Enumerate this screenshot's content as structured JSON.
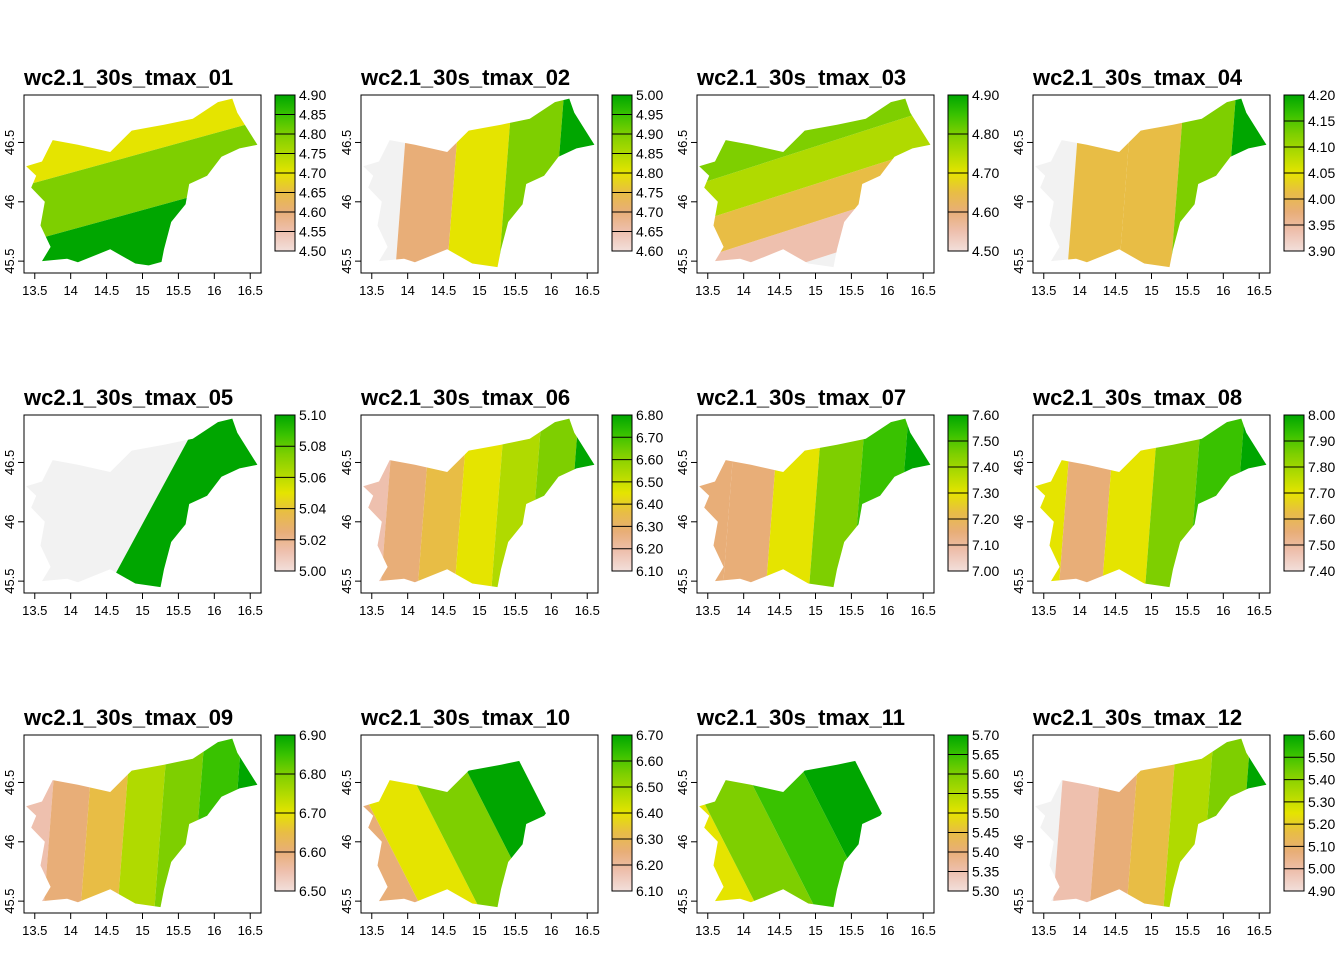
{
  "x_ticks": [
    "13.5",
    "14",
    "14.5",
    "15",
    "15.5",
    "16",
    "16.5"
  ],
  "y_ticks": [
    "45.5",
    "46",
    "46.5"
  ],
  "colors": {
    "nodata": "#f2f2f2",
    "ramp": [
      "#f2dfdb",
      "#eec0ae",
      "#e8ae78",
      "#e8bd45",
      "#e5e400",
      "#b0da00",
      "#7ecf00",
      "#39c200",
      "#00a600"
    ]
  },
  "panels": [
    {
      "title": "wc2.1_30s_tmax_01",
      "map_type": "diagonal",
      "legend": [
        "4.90",
        "4.85",
        "4.80",
        "4.75",
        "4.70",
        "4.65",
        "4.60",
        "4.55",
        "4.50"
      ],
      "zones": [
        "#f2f2f2",
        "#e8ae78",
        "#e5e400",
        "#7ecf00",
        "#00a600"
      ]
    },
    {
      "title": "wc2.1_30s_tmax_02",
      "map_type": "vertical",
      "legend": [
        "5.00",
        "4.95",
        "4.90",
        "4.85",
        "4.80",
        "4.75",
        "4.70",
        "4.65",
        "4.60"
      ],
      "zones": [
        "#f2f2f2",
        "#e8ae78",
        "#e5e400",
        "#7ecf00",
        "#00a600"
      ]
    },
    {
      "title": "wc2.1_30s_tmax_03",
      "map_type": "horizontal",
      "legend": [
        "4.90",
        "4.80",
        "4.70",
        "4.60",
        "4.50"
      ],
      "zones": [
        "#f2f2f2",
        "#eec0ae",
        "#e8bd45",
        "#b0da00",
        "#7ecf00",
        "#00a600"
      ]
    },
    {
      "title": "wc2.1_30s_tmax_04",
      "map_type": "vertical",
      "legend": [
        "4.20",
        "4.15",
        "4.10",
        "4.05",
        "4.00",
        "3.95",
        "3.90"
      ],
      "zones": [
        "#f2f2f2",
        "#e8bd45",
        "#e8bd45",
        "#7ecf00",
        "#00a600"
      ]
    },
    {
      "title": "wc2.1_30s_tmax_05",
      "map_type": "split",
      "legend": [
        "5.10",
        "5.08",
        "5.06",
        "5.04",
        "5.02",
        "5.00"
      ],
      "zones": [
        "#f2f2f2",
        "#00a600"
      ]
    },
    {
      "title": "wc2.1_30s_tmax_06",
      "map_type": "vertical",
      "legend": [
        "6.80",
        "6.70",
        "6.60",
        "6.50",
        "6.40",
        "6.30",
        "6.20",
        "6.10"
      ],
      "zones": [
        "#eec0ae",
        "#e8ae78",
        "#e8bd45",
        "#e5e400",
        "#b0da00",
        "#7ecf00",
        "#00a600"
      ]
    },
    {
      "title": "wc2.1_30s_tmax_07",
      "map_type": "vertical",
      "legend": [
        "7.60",
        "7.50",
        "7.40",
        "7.30",
        "7.20",
        "7.10",
        "7.00"
      ],
      "zones": [
        "#e8ae78",
        "#e8ae78",
        "#e5e400",
        "#7ecf00",
        "#39c200",
        "#00a600"
      ]
    },
    {
      "title": "wc2.1_30s_tmax_08",
      "map_type": "vertical",
      "legend": [
        "8.00",
        "7.90",
        "7.80",
        "7.70",
        "7.60",
        "7.50",
        "7.40"
      ],
      "zones": [
        "#e5e400",
        "#e8ae78",
        "#e5e400",
        "#7ecf00",
        "#39c200",
        "#00a600"
      ]
    },
    {
      "title": "wc2.1_30s_tmax_09",
      "map_type": "vertical",
      "legend": [
        "6.90",
        "6.80",
        "6.70",
        "6.60",
        "6.50"
      ],
      "zones": [
        "#eec0ae",
        "#e8ae78",
        "#e8bd45",
        "#b0da00",
        "#7ecf00",
        "#39c200",
        "#00a600"
      ]
    },
    {
      "title": "wc2.1_30s_tmax_10",
      "map_type": "diagonal2",
      "legend": [
        "6.70",
        "6.60",
        "6.50",
        "6.40",
        "6.30",
        "6.20",
        "6.10"
      ],
      "zones": [
        "#eec0ae",
        "#e8ae78",
        "#e5e400",
        "#7ecf00",
        "#00a600"
      ]
    },
    {
      "title": "wc2.1_30s_tmax_11",
      "map_type": "diagonal2",
      "legend": [
        "5.70",
        "5.65",
        "5.60",
        "5.55",
        "5.50",
        "5.45",
        "5.40",
        "5.35",
        "5.30"
      ],
      "zones": [
        "#e8ae78",
        "#e5e400",
        "#7ecf00",
        "#39c200",
        "#00a600"
      ]
    },
    {
      "title": "wc2.1_30s_tmax_12",
      "map_type": "vertical",
      "legend": [
        "5.60",
        "5.50",
        "5.40",
        "5.30",
        "5.20",
        "5.10",
        "5.00",
        "4.90"
      ],
      "zones": [
        "#f2f2f2",
        "#eec0ae",
        "#e8ae78",
        "#e8bd45",
        "#b0da00",
        "#7ecf00",
        "#00a600"
      ]
    }
  ]
}
